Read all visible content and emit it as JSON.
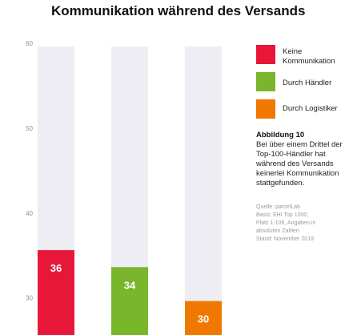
{
  "title": "Kommunikation während des Versands",
  "chart_data": {
    "type": "bar",
    "categories": [
      "Keine Kommunikation",
      "Durch Händler",
      "Durch Logistiker"
    ],
    "values": [
      36,
      34,
      30
    ],
    "colors": [
      "#e8173a",
      "#7ab62c",
      "#f07800"
    ],
    "track_color": "#ededf3",
    "y_ticks": [
      60,
      50,
      40,
      30
    ],
    "ylim": [
      26,
      60
    ],
    "grid": false,
    "legend_position": "right"
  },
  "legend": [
    {
      "label": "Keine Kommunikation",
      "color": "#e8173a"
    },
    {
      "label": "Durch Händler",
      "color": "#7ab62c"
    },
    {
      "label": "Durch Logistiker",
      "color": "#f07800"
    }
  ],
  "note": {
    "title": "Abbildung 10",
    "text": "Bei über einem Drittel der Top-100-Händler hat während des Versands keinerlei Kommunikation stattgefunden."
  },
  "source": {
    "line1": "Quelle: parcelLab",
    "line2": "Basis: EHI Top 1000,",
    "line3": "Platz 1-106, Angaben in",
    "line4": "absoluten Zahlen",
    "line5": "Stand: November 2019"
  }
}
